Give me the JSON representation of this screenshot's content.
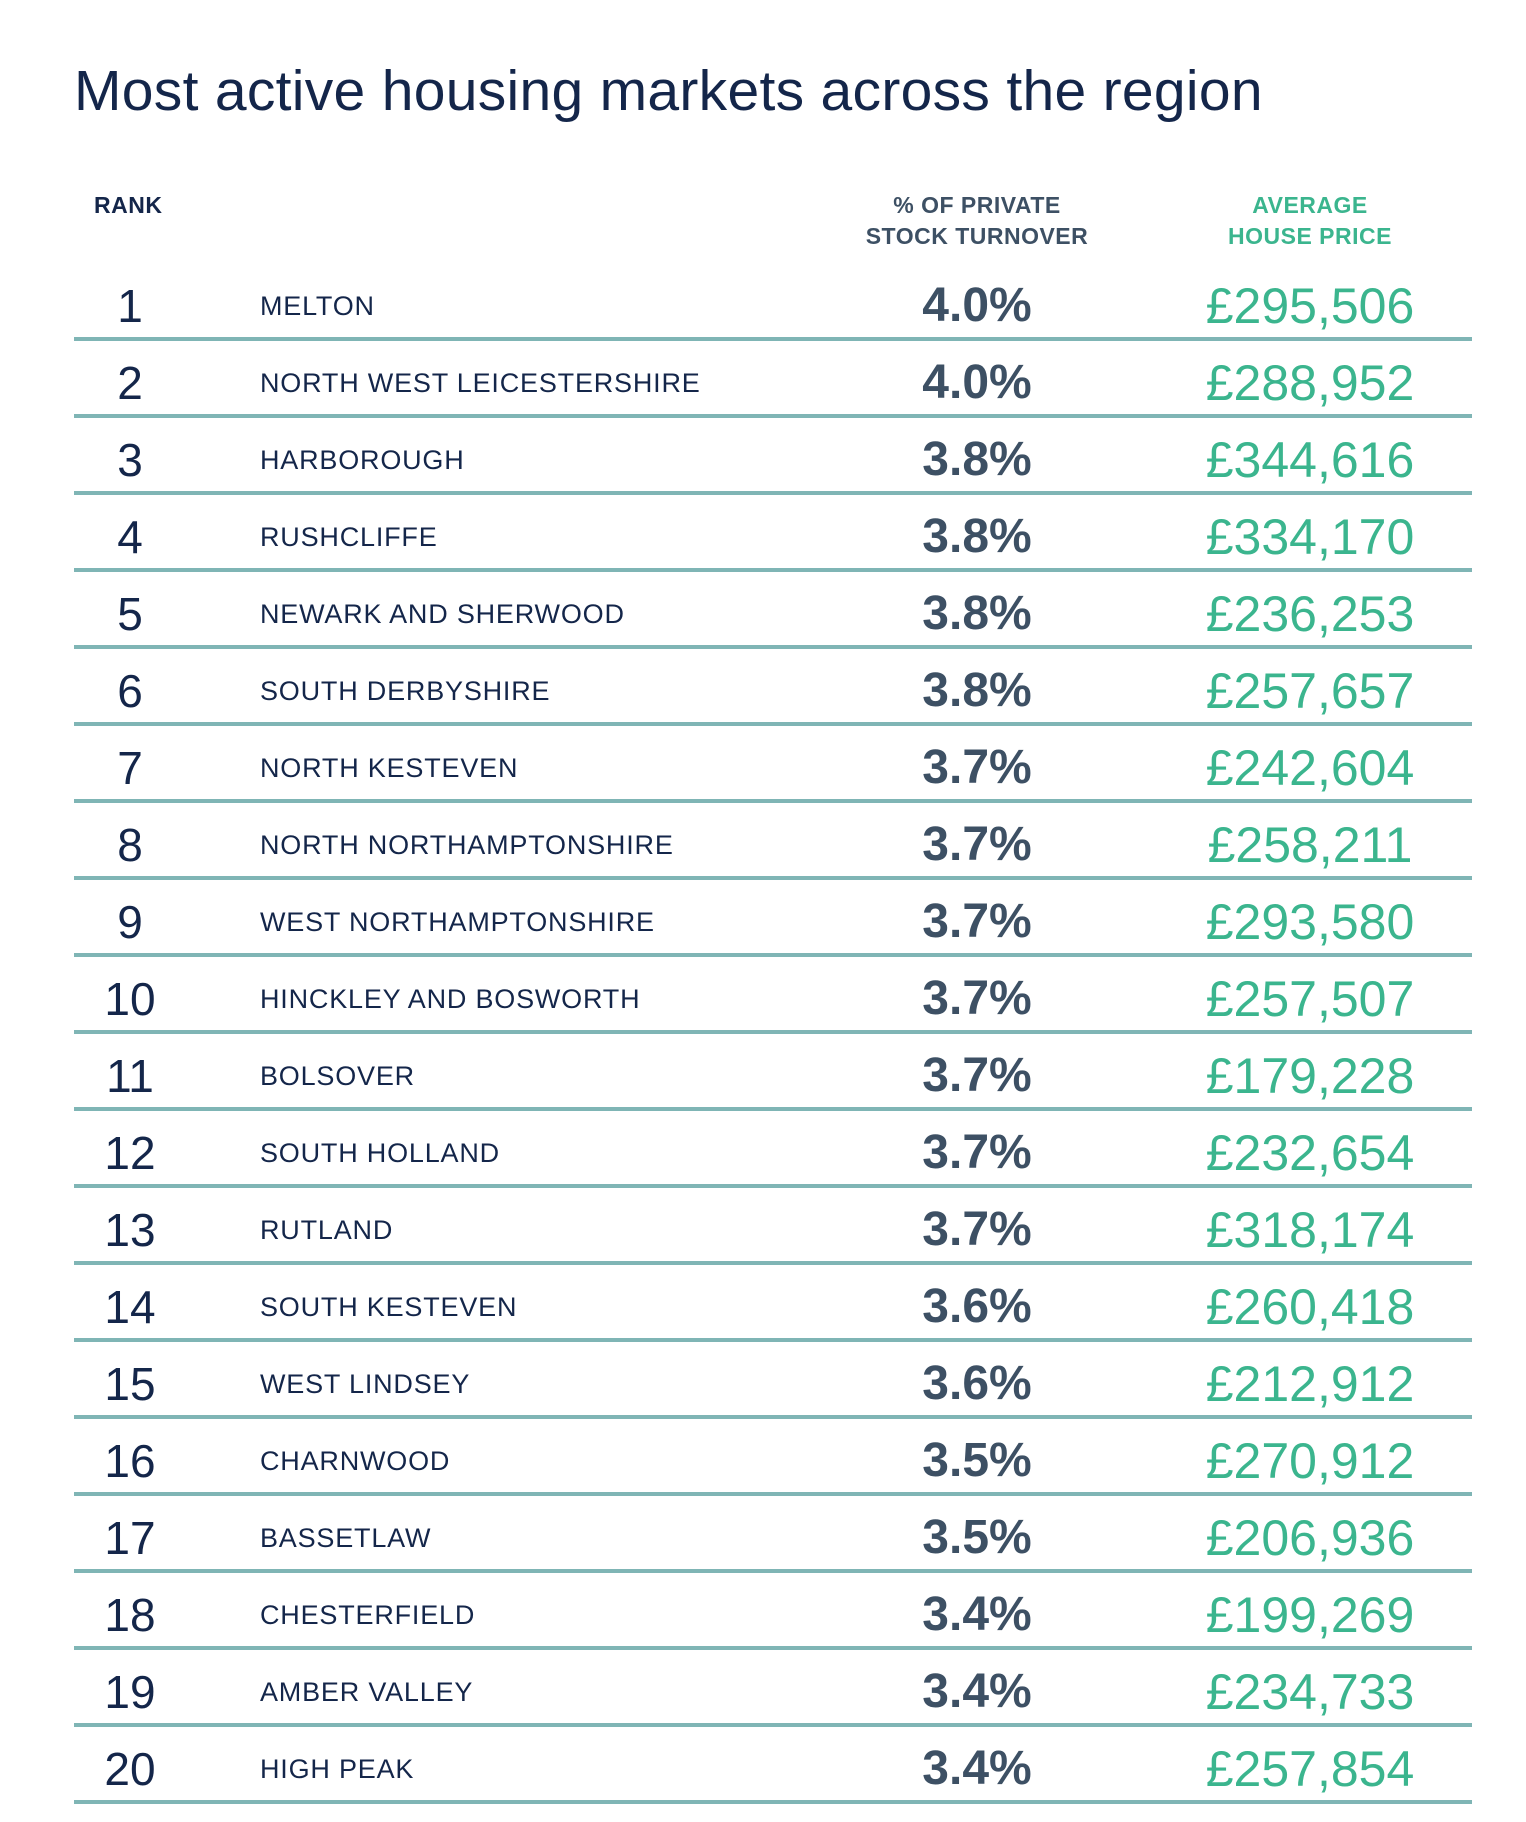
{
  "chart_data": {
    "type": "table",
    "title": "Most active housing markets across the region",
    "columns": [
      "RANK",
      "",
      "% OF PRIVATE STOCK TURNOVER",
      "AVERAGE HOUSE PRICE"
    ],
    "header_lines": {
      "pct": [
        "% OF PRIVATE",
        "STOCK TURNOVER"
      ],
      "price": [
        "AVERAGE",
        "HOUSE PRICE"
      ]
    },
    "colors": {
      "text": "#14264a",
      "percent": "#3d5064",
      "price": "#3bb58e",
      "divider": "#7fb5b5"
    },
    "rows": [
      {
        "rank": "1",
        "name": "MELTON",
        "pct": "4.0%",
        "price": "£295,506"
      },
      {
        "rank": "2",
        "name": "NORTH WEST LEICESTERSHIRE",
        "pct": "4.0%",
        "price": "£288,952"
      },
      {
        "rank": "3",
        "name": "HARBOROUGH",
        "pct": "3.8%",
        "price": "£344,616"
      },
      {
        "rank": "4",
        "name": "RUSHCLIFFE",
        "pct": "3.8%",
        "price": "£334,170"
      },
      {
        "rank": "5",
        "name": "NEWARK AND SHERWOOD",
        "pct": "3.8%",
        "price": "£236,253"
      },
      {
        "rank": "6",
        "name": "SOUTH DERBYSHIRE",
        "pct": "3.8%",
        "price": "£257,657"
      },
      {
        "rank": "7",
        "name": "NORTH KESTEVEN",
        "pct": "3.7%",
        "price": "£242,604"
      },
      {
        "rank": "8",
        "name": "NORTH NORTHAMPTONSHIRE",
        "pct": "3.7%",
        "price": "£258,211"
      },
      {
        "rank": "9",
        "name": "WEST NORTHAMPTONSHIRE",
        "pct": "3.7%",
        "price": "£293,580"
      },
      {
        "rank": "10",
        "name": "HINCKLEY AND BOSWORTH",
        "pct": "3.7%",
        "price": "£257,507"
      },
      {
        "rank": "11",
        "name": "BOLSOVER",
        "pct": "3.7%",
        "price": "£179,228"
      },
      {
        "rank": "12",
        "name": "SOUTH HOLLAND",
        "pct": "3.7%",
        "price": "£232,654"
      },
      {
        "rank": "13",
        "name": "RUTLAND",
        "pct": "3.7%",
        "price": "£318,174"
      },
      {
        "rank": "14",
        "name": "SOUTH KESTEVEN",
        "pct": "3.6%",
        "price": "£260,418"
      },
      {
        "rank": "15",
        "name": "WEST LINDSEY",
        "pct": "3.6%",
        "price": "£212,912"
      },
      {
        "rank": "16",
        "name": "CHARNWOOD",
        "pct": "3.5%",
        "price": "£270,912"
      },
      {
        "rank": "17",
        "name": "BASSETLAW",
        "pct": "3.5%",
        "price": "£206,936"
      },
      {
        "rank": "18",
        "name": "CHESTERFIELD",
        "pct": "3.4%",
        "price": "£199,269"
      },
      {
        "rank": "19",
        "name": "AMBER VALLEY",
        "pct": "3.4%",
        "price": "£234,733"
      },
      {
        "rank": "20",
        "name": "HIGH PEAK",
        "pct": "3.4%",
        "price": "£257,854"
      }
    ]
  }
}
